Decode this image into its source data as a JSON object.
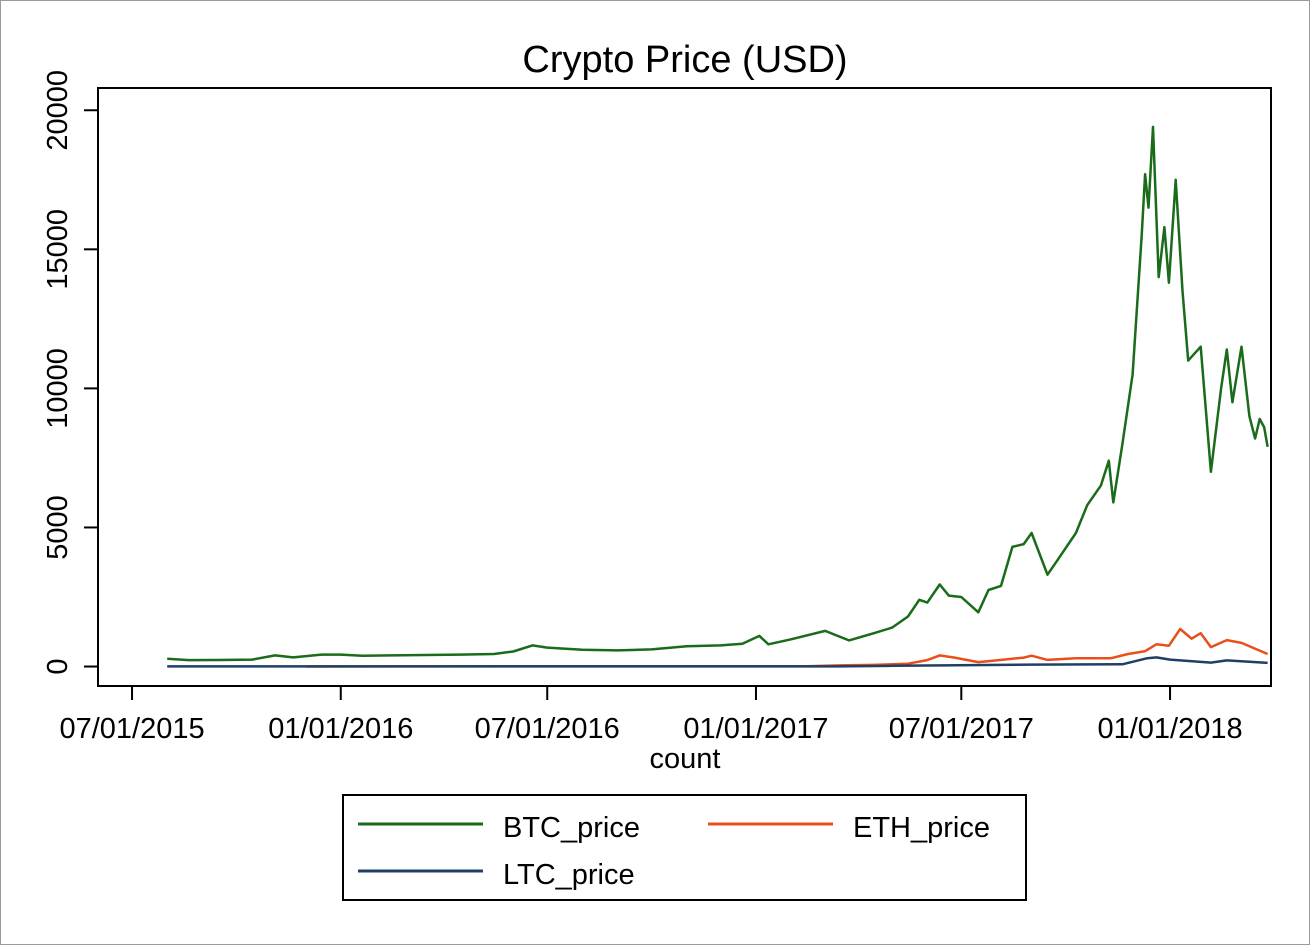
{
  "chart_data": {
    "type": "line",
    "title": "Crypto Price (USD)",
    "xlabel": "count",
    "ylabel": "",
    "x_ticks": [
      "07/01/2015",
      "01/01/2016",
      "07/01/2016",
      "01/01/2017",
      "07/01/2017",
      "01/01/2018"
    ],
    "xlim": [
      "2015-06-01",
      "2018-03-31"
    ],
    "y_ticks": [
      0,
      5000,
      10000,
      15000,
      20000
    ],
    "ylim": [
      -700,
      20800
    ],
    "grid": false,
    "legend_position": "bottom",
    "series": [
      {
        "name": "BTC_price",
        "color": "#1a6b1a",
        "points": [
          [
            "2015-08-01",
            280
          ],
          [
            "2015-08-20",
            230
          ],
          [
            "2015-09-15",
            235
          ],
          [
            "2015-10-15",
            250
          ],
          [
            "2015-11-04",
            400
          ],
          [
            "2015-11-20",
            330
          ],
          [
            "2015-12-15",
            430
          ],
          [
            "2016-01-01",
            430
          ],
          [
            "2016-01-20",
            390
          ],
          [
            "2016-02-15",
            400
          ],
          [
            "2016-03-15",
            415
          ],
          [
            "2016-04-15",
            430
          ],
          [
            "2016-05-15",
            450
          ],
          [
            "2016-06-01",
            540
          ],
          [
            "2016-06-18",
            760
          ],
          [
            "2016-07-01",
            680
          ],
          [
            "2016-08-01",
            600
          ],
          [
            "2016-09-01",
            580
          ],
          [
            "2016-10-01",
            615
          ],
          [
            "2016-11-01",
            730
          ],
          [
            "2016-12-01",
            760
          ],
          [
            "2016-12-20",
            820
          ],
          [
            "2017-01-04",
            1100
          ],
          [
            "2017-01-12",
            800
          ],
          [
            "2017-02-01",
            980
          ],
          [
            "2017-03-03",
            1280
          ],
          [
            "2017-03-24",
            940
          ],
          [
            "2017-04-15",
            1200
          ],
          [
            "2017-05-01",
            1400
          ],
          [
            "2017-05-15",
            1800
          ],
          [
            "2017-05-25",
            2400
          ],
          [
            "2017-06-01",
            2300
          ],
          [
            "2017-06-12",
            2950
          ],
          [
            "2017-06-20",
            2550
          ],
          [
            "2017-07-01",
            2500
          ],
          [
            "2017-07-16",
            1950
          ],
          [
            "2017-07-25",
            2750
          ],
          [
            "2017-08-05",
            2900
          ],
          [
            "2017-08-15",
            4300
          ],
          [
            "2017-08-25",
            4400
          ],
          [
            "2017-09-01",
            4800
          ],
          [
            "2017-09-15",
            3300
          ],
          [
            "2017-09-25",
            3900
          ],
          [
            "2017-10-10",
            4800
          ],
          [
            "2017-10-20",
            5800
          ],
          [
            "2017-11-01",
            6500
          ],
          [
            "2017-11-08",
            7400
          ],
          [
            "2017-11-12",
            5900
          ],
          [
            "2017-11-20",
            8000
          ],
          [
            "2017-11-29",
            10500
          ],
          [
            "2017-12-07",
            15500
          ],
          [
            "2017-12-10",
            17700
          ],
          [
            "2017-12-13",
            16500
          ],
          [
            "2017-12-17",
            19400
          ],
          [
            "2017-12-22",
            14000
          ],
          [
            "2017-12-27",
            15800
          ],
          [
            "2017-12-31",
            13800
          ],
          [
            "2018-01-06",
            17500
          ],
          [
            "2018-01-12",
            13500
          ],
          [
            "2018-01-17",
            11000
          ],
          [
            "2018-01-28",
            11500
          ],
          [
            "2018-02-06",
            7000
          ],
          [
            "2018-02-15",
            10000
          ],
          [
            "2018-02-20",
            11400
          ],
          [
            "2018-02-25",
            9500
          ],
          [
            "2018-03-05",
            11500
          ],
          [
            "2018-03-12",
            9000
          ],
          [
            "2018-03-17",
            8200
          ],
          [
            "2018-03-21",
            8900
          ],
          [
            "2018-03-25",
            8600
          ],
          [
            "2018-03-28",
            7900
          ]
        ]
      },
      {
        "name": "ETH_price",
        "color": "#e8501a",
        "points": [
          [
            "2015-12-01",
            0
          ],
          [
            "2016-06-01",
            10
          ],
          [
            "2016-12-01",
            8
          ],
          [
            "2017-02-15",
            12
          ],
          [
            "2017-03-15",
            40
          ],
          [
            "2017-04-15",
            60
          ],
          [
            "2017-05-15",
            100
          ],
          [
            "2017-06-01",
            230
          ],
          [
            "2017-06-12",
            400
          ],
          [
            "2017-06-25",
            320
          ],
          [
            "2017-07-16",
            160
          ],
          [
            "2017-08-01",
            220
          ],
          [
            "2017-08-25",
            320
          ],
          [
            "2017-09-01",
            390
          ],
          [
            "2017-09-15",
            240
          ],
          [
            "2017-10-10",
            300
          ],
          [
            "2017-11-10",
            300
          ],
          [
            "2017-11-25",
            450
          ],
          [
            "2017-12-10",
            550
          ],
          [
            "2017-12-20",
            800
          ],
          [
            "2017-12-31",
            750
          ],
          [
            "2018-01-10",
            1350
          ],
          [
            "2018-01-20",
            1000
          ],
          [
            "2018-01-28",
            1200
          ],
          [
            "2018-02-06",
            700
          ],
          [
            "2018-02-20",
            950
          ],
          [
            "2018-03-05",
            850
          ],
          [
            "2018-03-28",
            450
          ]
        ]
      },
      {
        "name": "LTC_price",
        "color": "#1f3f66",
        "points": [
          [
            "2015-08-01",
            4
          ],
          [
            "2016-01-01",
            3
          ],
          [
            "2016-06-01",
            4
          ],
          [
            "2017-01-01",
            4
          ],
          [
            "2017-03-15",
            5
          ],
          [
            "2017-05-01",
            25
          ],
          [
            "2017-06-15",
            40
          ],
          [
            "2017-09-01",
            70
          ],
          [
            "2017-11-20",
            80
          ],
          [
            "2017-12-12",
            300
          ],
          [
            "2017-12-20",
            330
          ],
          [
            "2018-01-01",
            250
          ],
          [
            "2018-02-06",
            140
          ],
          [
            "2018-02-20",
            220
          ],
          [
            "2018-03-28",
            130
          ]
        ]
      }
    ]
  }
}
